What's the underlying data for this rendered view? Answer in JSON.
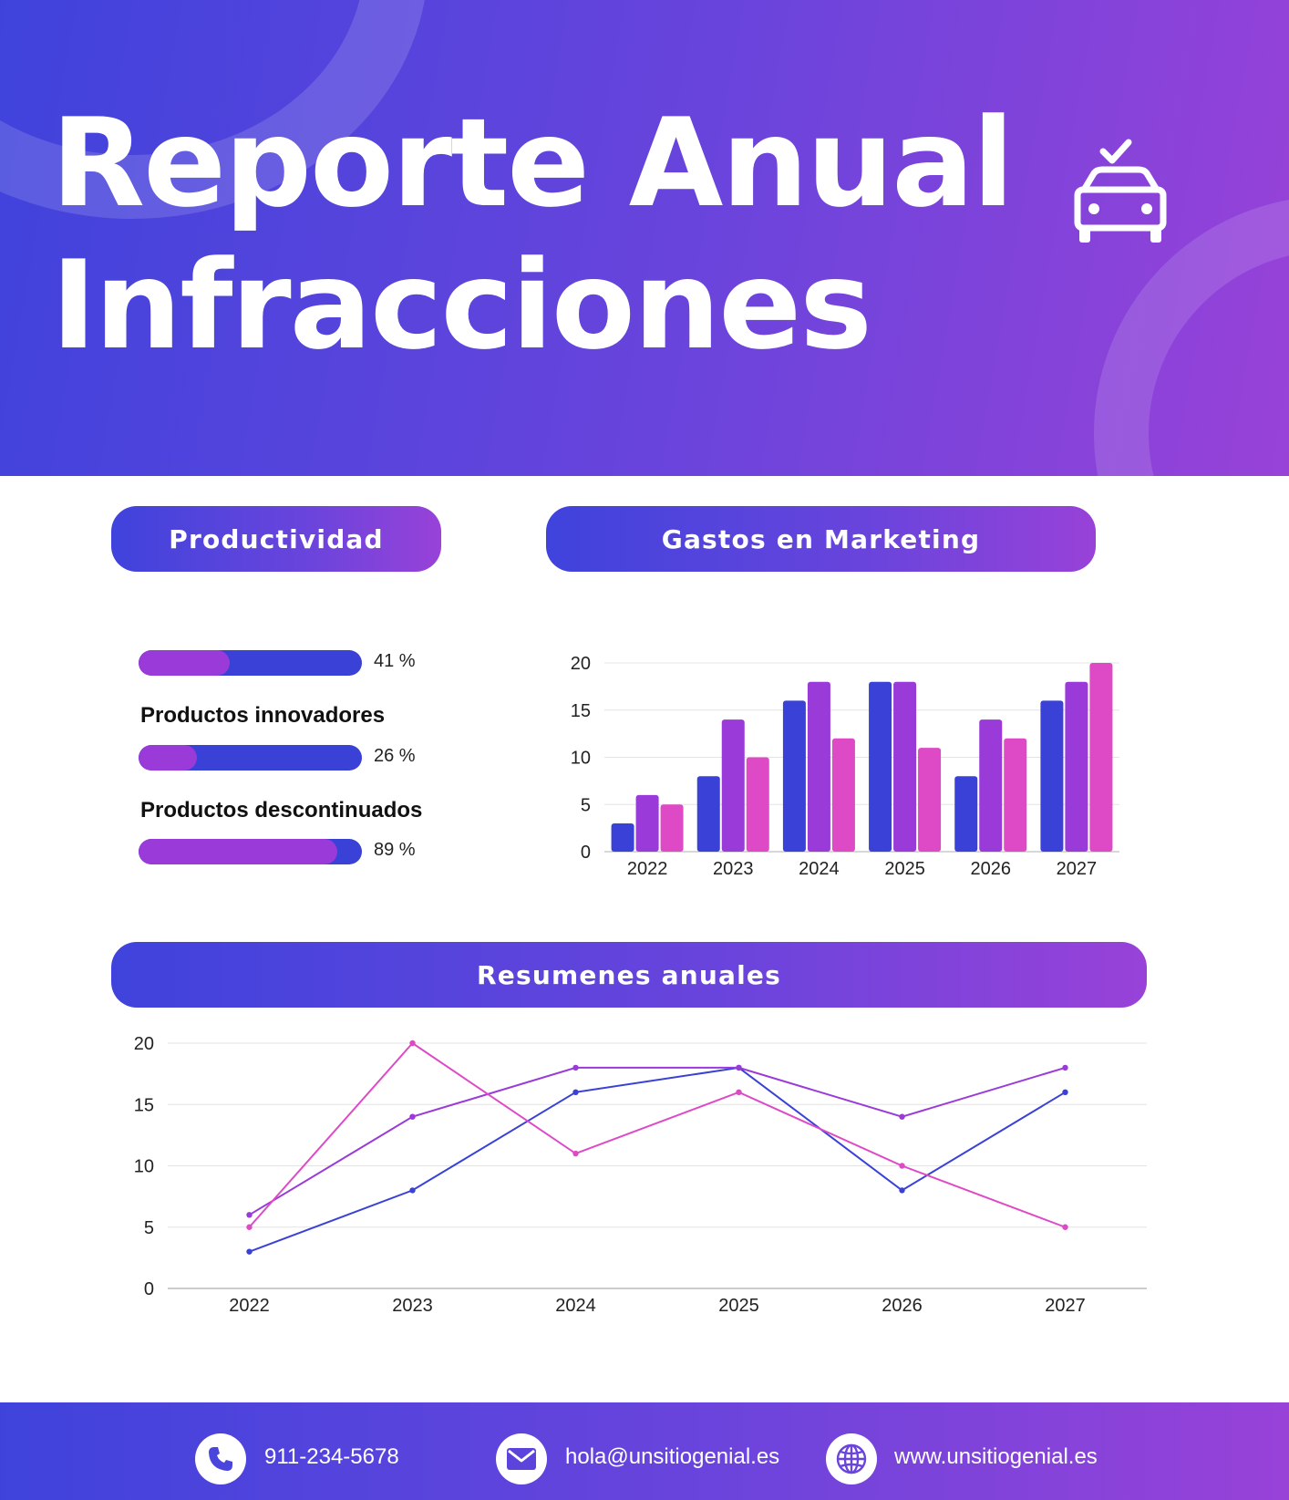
{
  "header": {
    "title_line1": "Reporte Anual",
    "title_line2": "Infracciones",
    "icon": "car-check-icon"
  },
  "colors": {
    "blue": "#3a41d6",
    "purple": "#9a3ad8",
    "pink": "#de4ac6",
    "gradient_start": "#3f43dc",
    "gradient_end": "#9842d8"
  },
  "sections": {
    "productivity": "Productividad",
    "marketing": "Gastos en Marketing",
    "summaries": "Resumenes anuales"
  },
  "productivity": {
    "items": [
      {
        "label": "",
        "percent": 41,
        "percent_text": "41 %"
      },
      {
        "label": "Productos innovadores",
        "percent": 26,
        "percent_text": "26 %"
      },
      {
        "label": "Productos descontinuados",
        "percent": 89,
        "percent_text": "89 %"
      }
    ]
  },
  "chart_data": [
    {
      "type": "bar",
      "categories": [
        "2022",
        "2023",
        "2024",
        "2025",
        "2026",
        "2027"
      ],
      "series": [
        {
          "values": [
            3,
            8,
            16,
            18,
            8,
            16
          ]
        },
        {
          "values": [
            6,
            14,
            18,
            18,
            14,
            18
          ]
        },
        {
          "values": [
            5,
            10,
            12,
            11,
            12,
            20
          ]
        }
      ],
      "title": "Gastos en Marketing",
      "xlabel": "",
      "ylabel": "",
      "ylim": [
        0,
        20
      ],
      "yticks": [
        0,
        5,
        10,
        15,
        20
      ],
      "grid": true
    },
    {
      "type": "line",
      "categories": [
        "2022",
        "2023",
        "2024",
        "2025",
        "2026",
        "2027"
      ],
      "series": [
        {
          "values": [
            3,
            8,
            16,
            18,
            8,
            16
          ]
        },
        {
          "values": [
            6,
            14,
            18,
            18,
            14,
            18
          ]
        },
        {
          "values": [
            5,
            20,
            11,
            16,
            10,
            5
          ]
        }
      ],
      "title": "Resumenes anuales",
      "xlabel": "",
      "ylabel": "",
      "ylim": [
        0,
        20
      ],
      "yticks": [
        0,
        5,
        10,
        15,
        20
      ],
      "grid": true
    }
  ],
  "footer": {
    "phone": "911-234-5678",
    "email": "hola@unsitiogenial.es",
    "website": "www.unsitiogenial.es",
    "icons": [
      "phone-icon",
      "mail-icon",
      "globe-icon"
    ]
  }
}
